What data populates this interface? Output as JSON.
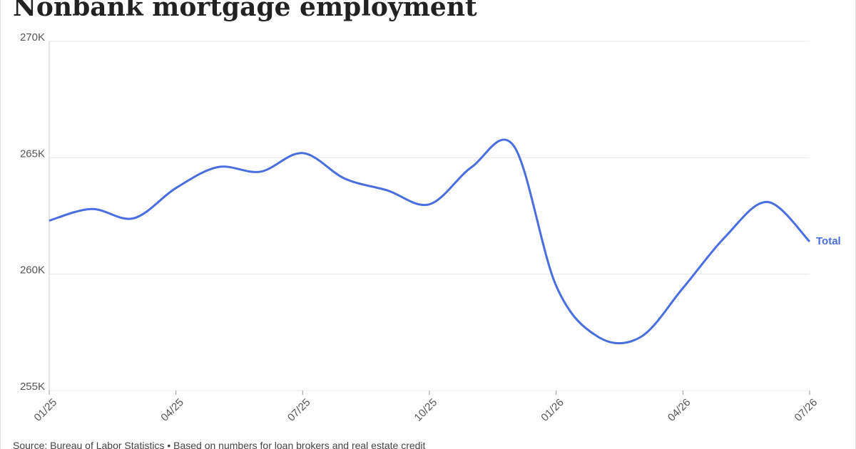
{
  "chart_data": {
    "type": "line",
    "title": "Nonbank mortgage employment",
    "source": "Source: Bureau of Labor Statistics • Based on numbers for loan brokers and real estate credit",
    "categories": [
      "01/25",
      null,
      null,
      "04/25",
      null,
      null,
      "07/25",
      null,
      null,
      "10/25",
      null,
      null,
      "01/26",
      null,
      null,
      "04/26",
      null,
      null,
      "07/26"
    ],
    "series": [
      {
        "name": "Total",
        "color": "#4a6ee0",
        "values": [
          262300,
          262800,
          262400,
          263700,
          264600,
          264400,
          265200,
          264100,
          263600,
          263000,
          264600,
          265500,
          259500,
          257300,
          257300,
          259400,
          261600,
          263100,
          261400
        ]
      }
    ],
    "ylim": [
      255000,
      270000
    ],
    "yticks": [
      {
        "value": 255000,
        "label": "255K"
      },
      {
        "value": 260000,
        "label": "260K"
      },
      {
        "value": 265000,
        "label": "265K"
      },
      {
        "value": 270000,
        "label": "270K"
      }
    ],
    "grid": true
  }
}
